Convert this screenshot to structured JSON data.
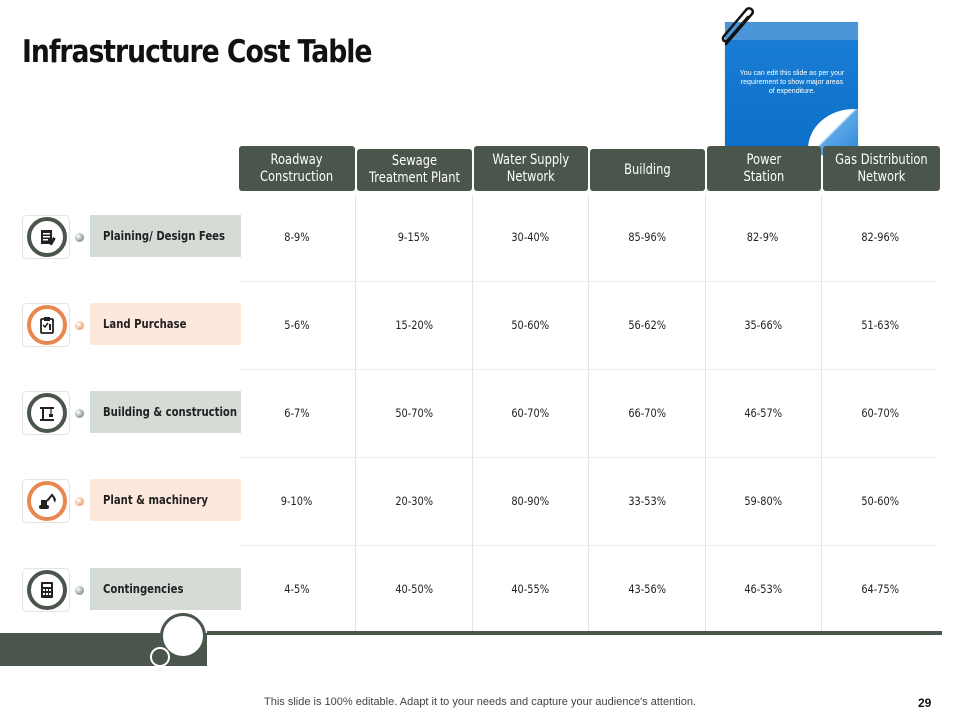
{
  "title": "Infrastructure Cost Table",
  "note": {
    "text": "You can edit this slide as per your requirement to show major areas of expenditure."
  },
  "columns": [
    "Roadway\nConstruction",
    "Sewage\nTreatment Plant",
    "Water Supply\nNetwork",
    "Building",
    "Power\nStation",
    "Gas Distribution\nNetwork"
  ],
  "rows": [
    {
      "label": "Plaining/ Design Fees",
      "icon": "document-icon",
      "values": [
        "8-9%",
        "9-15%",
        "30-40%",
        "85-96%",
        "82-9%",
        "82-96%"
      ]
    },
    {
      "label": "Land Purchase",
      "icon": "clipboard-icon",
      "values": [
        "5-6%",
        "15-20%",
        "50-60%",
        "56-62%",
        "35-66%",
        "51-63%"
      ]
    },
    {
      "label": "Building & construction",
      "icon": "crane-icon",
      "values": [
        "6-7%",
        "50-70%",
        "60-70%",
        "66-70%",
        "46-57%",
        "60-70%"
      ]
    },
    {
      "label": "Plant & machinery",
      "icon": "excavator-icon",
      "values": [
        "9-10%",
        "20-30%",
        "80-90%",
        "33-53%",
        "59-80%",
        "50-60%"
      ]
    },
    {
      "label": "Contingencies",
      "icon": "calculator-icon",
      "values": [
        "4-5%",
        "40-50%",
        "40-55%",
        "43-56%",
        "46-53%",
        "64-75%"
      ]
    }
  ],
  "footer": "This slide is 100% editable. Adapt it to your needs and capture your audience's attention.",
  "page_number": "29",
  "colors": {
    "dark": "#4a554c",
    "grey_label": "#d5dcd6",
    "peach_label": "#fde8dc",
    "orange": "#e8874f",
    "note_blue": "#0d6fc7"
  }
}
